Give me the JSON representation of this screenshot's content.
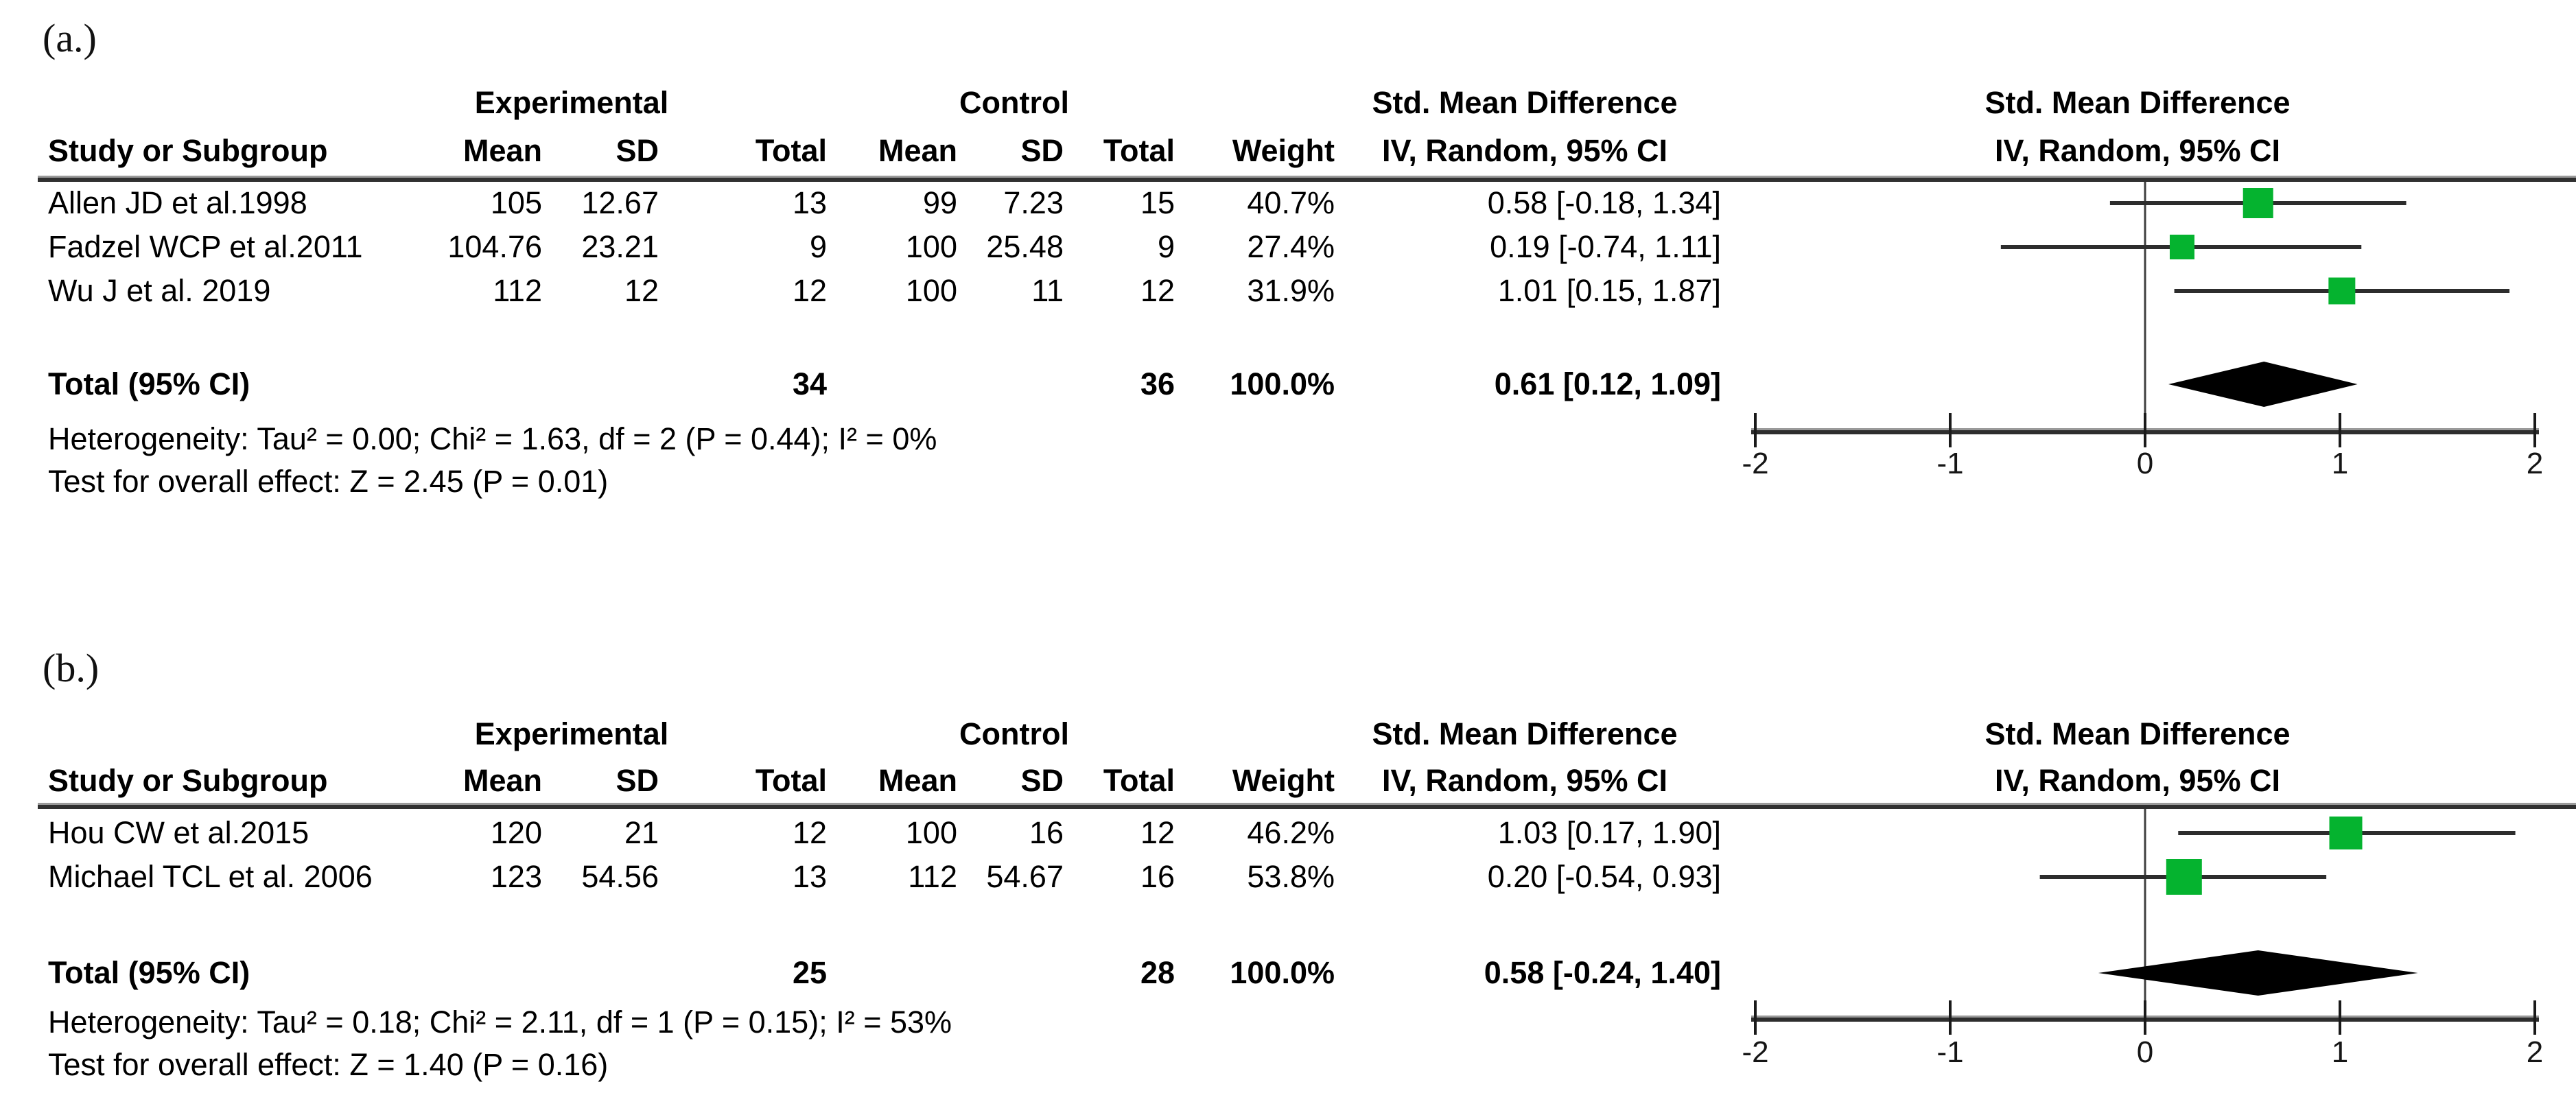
{
  "panel_a": {
    "label": "(a.)",
    "heterogeneity": "Heterogeneity: Tau² = 0.00; Chi² = 1.63, df = 2 (P = 0.44); I² = 0%",
    "overall_effect": "Test for overall effect: Z = 2.45 (P = 0.01)",
    "rows": [
      {
        "study": "Allen JD et al.1998",
        "mean_e": "105",
        "sd_e": "12.67",
        "total_e": "13",
        "mean_c": "99",
        "sd_c": "7.23",
        "total_c": "15",
        "weight": "40.7%",
        "ci": "0.58 [-0.18, 1.34]"
      },
      {
        "study": "Fadzel WCP et al.2011",
        "mean_e": "104.76",
        "sd_e": "23.21",
        "total_e": "9",
        "mean_c": "100",
        "sd_c": "25.48",
        "total_c": "9",
        "weight": "27.4%",
        "ci": "0.19 [-0.74, 1.11]"
      },
      {
        "study": "Wu J et al. 2019",
        "mean_e": "112",
        "sd_e": "12",
        "total_e": "12",
        "mean_c": "100",
        "sd_c": "11",
        "total_c": "12",
        "weight": "31.9%",
        "ci": "1.01 [0.15, 1.87]"
      }
    ],
    "total_row": {
      "label": "Total (95% CI)",
      "total_e": "34",
      "total_c": "36",
      "weight": "100.0%",
      "ci": "0.61 [0.12, 1.09]"
    }
  },
  "panel_b": {
    "label": "(b.)",
    "heterogeneity": "Heterogeneity: Tau² = 0.18; Chi² = 2.11, df = 1 (P = 0.15); I² = 53%",
    "overall_effect": "Test for overall effect: Z = 1.40 (P = 0.16)",
    "rows": [
      {
        "study": "Hou CW et al.2015",
        "mean_e": "120",
        "sd_e": "21",
        "total_e": "12",
        "mean_c": "100",
        "sd_c": "16",
        "total_c": "12",
        "weight": "46.2%",
        "ci": "1.03 [0.17, 1.90]"
      },
      {
        "study": "Michael TCL et al. 2006",
        "mean_e": "123",
        "sd_e": "54.56",
        "total_e": "13",
        "mean_c": "112",
        "sd_c": "54.67",
        "total_c": "16",
        "weight": "53.8%",
        "ci": "0.20 [-0.54, 0.93]"
      }
    ],
    "total_row": {
      "label": "Total (95% CI)",
      "total_e": "25",
      "total_c": "28",
      "weight": "100.0%",
      "ci": "0.58 [-0.24, 1.40]"
    }
  },
  "header": {
    "study": "Study or Subgroup",
    "experimental": "Experimental",
    "control": "Control",
    "smd": "Std. Mean Difference",
    "mean": "Mean",
    "sd": "SD",
    "total": "Total",
    "weight": "Weight",
    "method": "IV, Random, 95% CI"
  },
  "chart_data": [
    {
      "panel": "a",
      "type": "forest",
      "title": "Std. Mean Difference",
      "method": "IV, Random, 95% CI",
      "xlim": [
        -2,
        2
      ],
      "xticks": [
        -2,
        -1,
        0,
        1,
        2
      ],
      "studies": [
        {
          "name": "Allen JD et al.1998",
          "estimate": 0.58,
          "ci_low": -0.18,
          "ci_high": 1.34,
          "weight_pct": 40.7
        },
        {
          "name": "Fadzel WCP et al.2011",
          "estimate": 0.19,
          "ci_low": -0.74,
          "ci_high": 1.11,
          "weight_pct": 27.4
        },
        {
          "name": "Wu J et al. 2019",
          "estimate": 1.01,
          "ci_low": 0.15,
          "ci_high": 1.87,
          "weight_pct": 31.9
        }
      ],
      "total": {
        "estimate": 0.61,
        "ci_low": 0.12,
        "ci_high": 1.09
      },
      "marker_color": "#05B32F",
      "diamond_color": "#000000",
      "axis_color": "#2d2d2d"
    },
    {
      "panel": "b",
      "type": "forest",
      "title": "Std. Mean Difference",
      "method": "IV, Random, 95% CI",
      "xlim": [
        -2,
        2
      ],
      "xticks": [
        -2,
        -1,
        0,
        1,
        2
      ],
      "studies": [
        {
          "name": "Hou CW et al.2015",
          "estimate": 1.03,
          "ci_low": 0.17,
          "ci_high": 1.9,
          "weight_pct": 46.2
        },
        {
          "name": "Michael TCL et al. 2006",
          "estimate": 0.2,
          "ci_low": -0.54,
          "ci_high": 0.93,
          "weight_pct": 53.8
        }
      ],
      "total": {
        "estimate": 0.58,
        "ci_low": -0.24,
        "ci_high": 1.4
      },
      "marker_color": "#05B32F",
      "diamond_color": "#000000",
      "axis_color": "#2d2d2d"
    }
  ]
}
